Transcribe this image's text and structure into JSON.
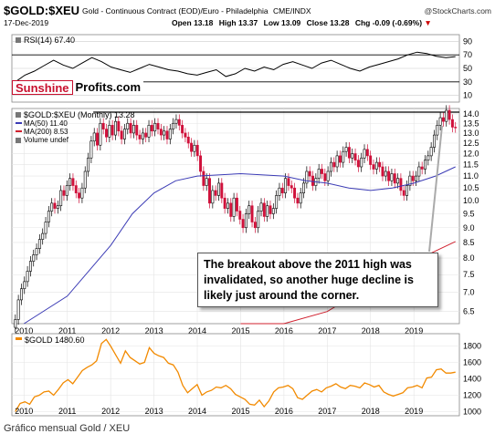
{
  "header": {
    "symbol": "$GOLD:$XEU",
    "description": "Gold - Continuous Contract (EOD)/Euro - Philadelphia",
    "exchange": "CME/INDX",
    "brand": "@StockCharts.com",
    "date": "17-Dec-2019",
    "open": "Open 13.18",
    "high": "High 13.37",
    "low": "Low 13.09",
    "close": "Close 13.28",
    "chg": "Chg -0.09 (-0.69%)",
    "chg_arrow": "▼"
  },
  "rsi_panel": {
    "label": "RSI(14) 67.40",
    "ticks": [
      "90",
      "70",
      "50",
      "30",
      "10"
    ],
    "levels": [
      90,
      70,
      50,
      30,
      10
    ],
    "lines": [
      70,
      30
    ],
    "values": [
      30,
      40,
      46,
      54,
      62,
      55,
      50,
      58,
      66,
      60,
      52,
      48,
      44,
      50,
      56,
      52,
      48,
      46,
      42,
      40,
      44,
      48,
      38,
      42,
      50,
      46,
      52,
      48,
      56,
      60,
      55,
      50,
      58,
      62,
      56,
      50,
      46,
      52,
      56,
      60,
      64,
      70,
      74,
      72,
      68,
      66,
      67.4
    ]
  },
  "logo": {
    "part1": "Sunshine",
    "part2": "Profits.com"
  },
  "price_panel": {
    "legend_title": "$GOLD:$XEU (Monthly) 13.28",
    "ma50": "MA(50) 11.40",
    "ma200": "MA(200) 8.53",
    "volume": "Volume undef",
    "ticks": [
      "14.0",
      "13.5",
      "13.0",
      "12.5",
      "12.0",
      "11.5",
      "11.0",
      "10.5",
      "10.0",
      "9.5",
      "9.0",
      "8.5",
      "8.0",
      "7.5",
      "7.0",
      "6.5"
    ],
    "tick_values": [
      14.0,
      13.5,
      13.0,
      12.5,
      12.0,
      11.5,
      11.0,
      10.5,
      10.0,
      9.5,
      9.0,
      8.5,
      8.0,
      7.5,
      7.0,
      6.5
    ],
    "resistance": 14.1
  },
  "chart_data": [
    {
      "type": "candlestick",
      "title": "$GOLD:$XEU (Monthly)",
      "x_start": "2009.75",
      "x_end": "2020.0",
      "closes": [
        6.3,
        6.8,
        7.1,
        7.3,
        7.6,
        7.9,
        8.1,
        8.3,
        8.6,
        8.8,
        9.2,
        9.6,
        9.9,
        9.7,
        9.8,
        10.4,
        10.2,
        10.6,
        10.9,
        10.6,
        10.3,
        10.1,
        10.5,
        11.2,
        11.8,
        12.6,
        13.0,
        12.4,
        13.5,
        13.2,
        12.8,
        13.4,
        12.9,
        13.6,
        13.1,
        12.7,
        13.2,
        13.5,
        13.0,
        13.4,
        12.9,
        12.7,
        13.0,
        12.8,
        13.4,
        13.1,
        13.5,
        13.2,
        12.9,
        13.1,
        12.7,
        13.2,
        13.5,
        13.7,
        13.4,
        13.0,
        12.8,
        12.5,
        12.1,
        12.4,
        11.9,
        11.2,
        10.6,
        10.9,
        9.9,
        10.4,
        10.2,
        10.7,
        10.1,
        9.7,
        9.9,
        9.4,
        10.1,
        9.6,
        9.3,
        9.0,
        9.5,
        9.8,
        9.2,
        9.0,
        9.6,
        9.9,
        9.4,
        9.8,
        9.5,
        9.7,
        10.2,
        10.5,
        10.3,
        10.9,
        10.6,
        10.5,
        10.1,
        9.9,
        10.3,
        10.7,
        11.2,
        11.0,
        10.6,
        10.9,
        11.3,
        11.1,
        10.8,
        11.2,
        11.6,
        11.4,
        11.9,
        11.6,
        12.1,
        12.3,
        11.8,
        12.0,
        11.7,
        11.4,
        11.8,
        12.2,
        11.9,
        11.5,
        11.3,
        11.6,
        11.4,
        11.0,
        11.2,
        10.8,
        11.1,
        10.7,
        10.9,
        10.4,
        10.2,
        10.6,
        11.0,
        10.8,
        11.0,
        11.4,
        11.3,
        11.7,
        11.9,
        12.3,
        12.9,
        13.4,
        13.8,
        13.6,
        14.2,
        13.7,
        13.3,
        13.28
      ],
      "ma50": {
        "name": "MA(50)",
        "points": [
          [
            2010.0,
            5.9
          ],
          [
            2011.0,
            6.9
          ],
          [
            2012.0,
            8.4
          ],
          [
            2012.5,
            9.5
          ],
          [
            2013.0,
            10.3
          ],
          [
            2013.5,
            10.8
          ],
          [
            2014.0,
            11.0
          ],
          [
            2015.0,
            11.1
          ],
          [
            2016.0,
            11.0
          ],
          [
            2016.5,
            10.8
          ],
          [
            2017.0,
            10.7
          ],
          [
            2017.5,
            10.5
          ],
          [
            2018.0,
            10.4
          ],
          [
            2018.5,
            10.5
          ],
          [
            2019.0,
            10.7
          ],
          [
            2019.5,
            11.0
          ],
          [
            2019.96,
            11.4
          ]
        ]
      },
      "ma200": {
        "name": "MA(200)",
        "points": [
          [
            2015.0,
            5.4
          ],
          [
            2016.0,
            5.9
          ],
          [
            2017.0,
            6.5
          ],
          [
            2018.0,
            7.2
          ],
          [
            2019.0,
            7.9
          ],
          [
            2019.96,
            8.53
          ]
        ]
      },
      "x_ticks": [
        "2010",
        "2011",
        "2012",
        "2013",
        "2014",
        "2015",
        "2016",
        "2017",
        "2018",
        "2019"
      ],
      "y_range": [
        6.2,
        14.3
      ],
      "scale": "log"
    },
    {
      "type": "line",
      "title": "$GOLD 1480.60",
      "x_ticks": [
        "2010",
        "2011",
        "2012",
        "2013",
        "2014",
        "2015",
        "2016",
        "2017",
        "2018",
        "2019"
      ],
      "y_ticks": [
        "1800",
        "1600",
        "1400",
        "1200",
        "1000"
      ],
      "y_tick_values": [
        1800,
        1600,
        1400,
        1200,
        1000
      ],
      "y_range": [
        950,
        1950
      ],
      "values": [
        1000,
        1100,
        1120,
        1090,
        1180,
        1200,
        1240,
        1250,
        1200,
        1270,
        1350,
        1390,
        1340,
        1420,
        1500,
        1540,
        1570,
        1620,
        1830,
        1880,
        1790,
        1690,
        1590,
        1740,
        1660,
        1620,
        1580,
        1600,
        1780,
        1710,
        1680,
        1660,
        1590,
        1570,
        1480,
        1320,
        1230,
        1280,
        1330,
        1200,
        1240,
        1260,
        1300,
        1290,
        1320,
        1280,
        1210,
        1180,
        1150,
        1090,
        1080,
        1140,
        1060,
        1130,
        1240,
        1290,
        1300,
        1320,
        1280,
        1170,
        1150,
        1200,
        1250,
        1270,
        1240,
        1290,
        1310,
        1340,
        1300,
        1280,
        1320,
        1310,
        1290,
        1350,
        1330,
        1300,
        1320,
        1240,
        1210,
        1190,
        1210,
        1230,
        1290,
        1300,
        1320,
        1290,
        1410,
        1420,
        1510,
        1520,
        1470,
        1470,
        1480.6
      ],
      "color": "#f28a00"
    }
  ],
  "annotation": {
    "line1": "The breakout above the 2011 high was",
    "line2": "invalidated, so another huge decline is",
    "line3": "likely just around the corner."
  },
  "caption": "Gráfico mensual Gold / XEU",
  "colors": {
    "ma50": "#3b3bb5",
    "ma200": "#d0202e",
    "gold": "#f28a00",
    "up": "#000000",
    "down": "#d0103a"
  }
}
